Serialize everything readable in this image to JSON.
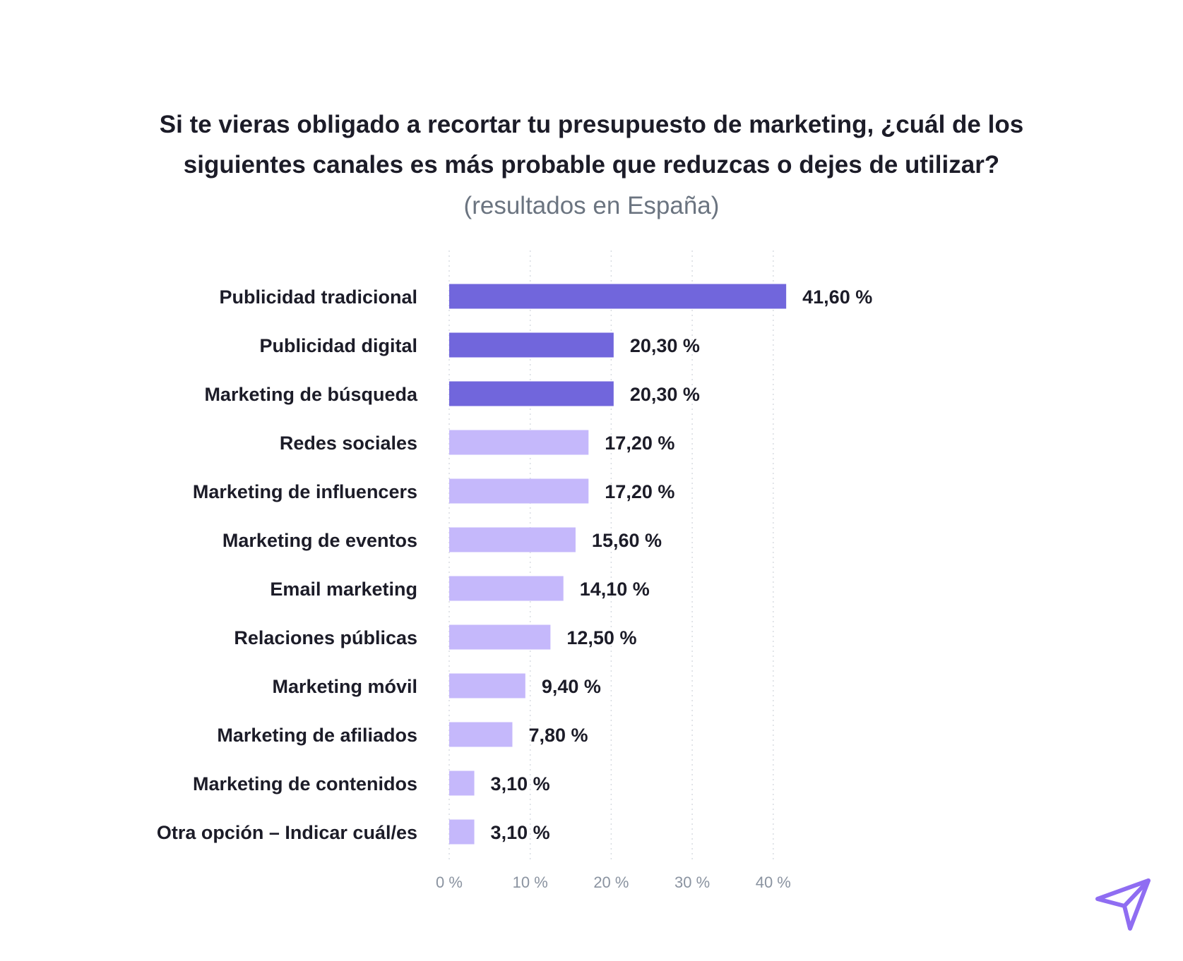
{
  "chart_data": {
    "type": "bar",
    "orientation": "horizontal",
    "title": "Si te vieras obligado a recortar tu presupuesto de marketing, ¿cuál de los siguientes canales es más probable que reduzcas o dejes de utilizar?",
    "title_lines": [
      "Si te vieras obligado a recortar tu presupuesto de marketing, ¿cuál de los",
      "siguientes canales es más probable que reduzcas o dejes de utilizar?"
    ],
    "subtitle": "(resultados en España)",
    "categories": [
      "Publicidad tradicional",
      "Publicidad digital",
      "Marketing de búsqueda",
      "Redes sociales",
      "Marketing de influencers",
      "Marketing de eventos",
      "Email marketing",
      "Relaciones públicas",
      "Marketing móvil",
      "Marketing de afiliados",
      "Marketing de contenidos",
      "Otra opción – Indicar cuál/es"
    ],
    "values": [
      41.6,
      20.3,
      20.3,
      17.2,
      17.2,
      15.6,
      14.1,
      12.5,
      9.4,
      7.8,
      3.1,
      3.1
    ],
    "value_labels": [
      "41,60 %",
      "20,30 %",
      "20,30 %",
      "17,20 %",
      "17,20 %",
      "15,60 %",
      "14,10 %",
      "12,50 %",
      "9,40 %",
      "7,80 %",
      "3,10 %",
      "3,10 %"
    ],
    "highlighted_top": 3,
    "x_ticks": [
      "0 %",
      "10 %",
      "20 %",
      "30 %",
      "40 %"
    ],
    "x_tick_values": [
      0,
      10,
      20,
      30,
      40
    ],
    "xlim": [
      0,
      40
    ],
    "grid": true,
    "grid_style": "dotted vertical",
    "colors": {
      "highlight": "#7166dc",
      "regular": "#c5b8fb",
      "label_text": "#1c1c28",
      "tick_text": "#8a93a0",
      "grid": "#d8dce2",
      "logo": "#8f6df2"
    }
  },
  "logo_icon": "paper-plane-icon"
}
